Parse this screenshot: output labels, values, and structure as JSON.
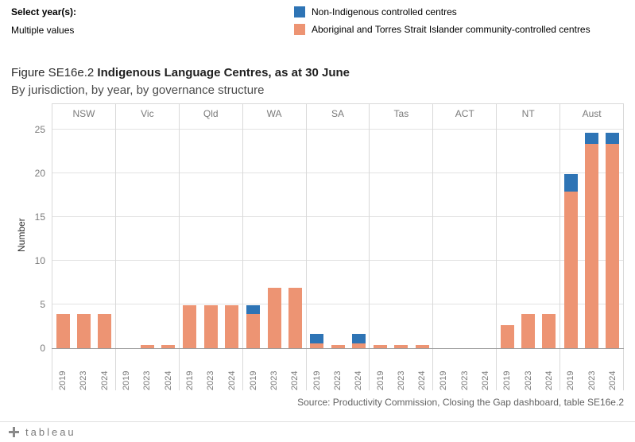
{
  "filter": {
    "label": "Select year(s):",
    "value": "Multiple values"
  },
  "legend": {
    "items": [
      {
        "label": "Non-Indigenous controlled centres",
        "color": "#2e74b5"
      },
      {
        "label": "Aboriginal and Torres Strait Islander community-controlled centres",
        "color": "#ed9473"
      }
    ]
  },
  "title": {
    "prefix": "Figure SE16e.2 ",
    "main": "Indigenous Language Centres, as at 30 June",
    "subtitle": "By jurisdiction, by year, by governance structure"
  },
  "source": "Source: Productivity Commission, Closing the Gap dashboard, table SE16e.2",
  "footer": {
    "brand": "tableau"
  },
  "chart_data": {
    "type": "bar",
    "stacked": true,
    "title": "Figure SE16e.2 Indigenous Language Centres, as at 30 June",
    "subtitle": "By jurisdiction, by year, by governance structure",
    "ylabel": "Number",
    "ylim": [
      0,
      25
    ],
    "yticks": [
      0,
      5,
      10,
      15,
      20,
      25
    ],
    "grid": true,
    "legend_position": "top-right",
    "categories": [
      "NSW",
      "Vic",
      "Qld",
      "WA",
      "SA",
      "Tas",
      "ACT",
      "NT",
      "Aust"
    ],
    "years": [
      "2019",
      "2023",
      "2024"
    ],
    "series_names": {
      "community": "Aboriginal and Torres Strait Islander community-controlled centres",
      "non_indigenous": "Non-Indigenous controlled centres"
    },
    "colors": {
      "community": "#ed9473",
      "non_indigenous": "#2e74b5"
    },
    "panels": [
      {
        "label": "NSW",
        "bars": [
          {
            "year": "2019",
            "community": 4,
            "non_indigenous": 0
          },
          {
            "year": "2023",
            "community": 4,
            "non_indigenous": 0
          },
          {
            "year": "2024",
            "community": 4,
            "non_indigenous": 0
          }
        ]
      },
      {
        "label": "Vic",
        "bars": [
          {
            "year": "2019",
            "community": 0,
            "non_indigenous": 0
          },
          {
            "year": "2023",
            "community": 0.5,
            "non_indigenous": 0
          },
          {
            "year": "2024",
            "community": 0.5,
            "non_indigenous": 0
          }
        ]
      },
      {
        "label": "Qld",
        "bars": [
          {
            "year": "2019",
            "community": 5,
            "non_indigenous": 0
          },
          {
            "year": "2023",
            "community": 5,
            "non_indigenous": 0
          },
          {
            "year": "2024",
            "community": 5,
            "non_indigenous": 0
          }
        ]
      },
      {
        "label": "WA",
        "bars": [
          {
            "year": "2019",
            "community": 4,
            "non_indigenous": 1
          },
          {
            "year": "2023",
            "community": 7,
            "non_indigenous": 0
          },
          {
            "year": "2024",
            "community": 7,
            "non_indigenous": 0
          }
        ]
      },
      {
        "label": "SA",
        "bars": [
          {
            "year": "2019",
            "community": 0.6,
            "non_indigenous": 1.1
          },
          {
            "year": "2023",
            "community": 0.5,
            "non_indigenous": 0
          },
          {
            "year": "2024",
            "community": 0.6,
            "non_indigenous": 1.1
          }
        ]
      },
      {
        "label": "Tas",
        "bars": [
          {
            "year": "2019",
            "community": 0.5,
            "non_indigenous": 0
          },
          {
            "year": "2023",
            "community": 0.5,
            "non_indigenous": 0
          },
          {
            "year": "2024",
            "community": 0.5,
            "non_indigenous": 0
          }
        ]
      },
      {
        "label": "ACT",
        "bars": [
          {
            "year": "2019",
            "community": 0,
            "non_indigenous": 0
          },
          {
            "year": "2023",
            "community": 0,
            "non_indigenous": 0
          },
          {
            "year": "2024",
            "community": 0,
            "non_indigenous": 0
          }
        ]
      },
      {
        "label": "NT",
        "bars": [
          {
            "year": "2019",
            "community": 2.7,
            "non_indigenous": 0
          },
          {
            "year": "2023",
            "community": 4,
            "non_indigenous": 0
          },
          {
            "year": "2024",
            "community": 4,
            "non_indigenous": 0
          }
        ]
      },
      {
        "label": "Aust",
        "bars": [
          {
            "year": "2019",
            "community": 18,
            "non_indigenous": 2
          },
          {
            "year": "2023",
            "community": 23.5,
            "non_indigenous": 1.2
          },
          {
            "year": "2024",
            "community": 23.5,
            "non_indigenous": 1.2
          }
        ]
      }
    ]
  }
}
